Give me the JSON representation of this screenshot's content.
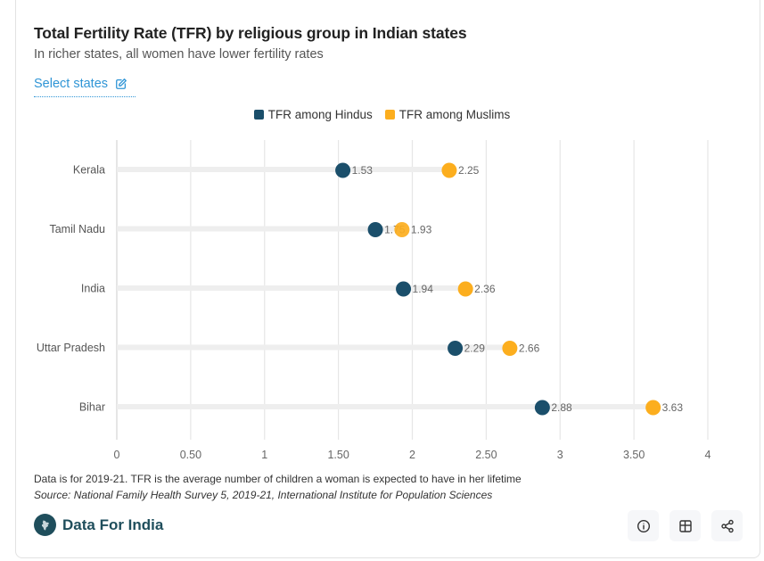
{
  "header": {
    "title": "Total Fertility Rate (TFR) by religious group in Indian states",
    "subtitle": "In richer states, all women have lower fertility rates",
    "select_states_label": "Select states",
    "select_states_icon": "edit-icon"
  },
  "colors": {
    "hindu": "#1b4f6b",
    "muslim": "#fcae1e",
    "track": "#eeeeee",
    "grid": "#e6e6e6",
    "link": "#2f95d6"
  },
  "chart_data": {
    "type": "dumbbell",
    "title": "Total Fertility Rate (TFR) by religious group in Indian states",
    "subtitle": "In richer states, all women have lower fertility rates",
    "categories": [
      "Kerala",
      "Tamil Nadu",
      "India",
      "Uttar Pradesh",
      "Bihar"
    ],
    "series": [
      {
        "name": "TFR among Hindus",
        "values": [
          1.53,
          1.75,
          1.94,
          2.29,
          2.88
        ]
      },
      {
        "name": "TFR among Muslims",
        "values": [
          2.25,
          1.93,
          2.36,
          2.66,
          3.63
        ]
      }
    ],
    "xlim": [
      0,
      4
    ],
    "xticks": [
      0,
      0.5,
      1,
      1.5,
      2,
      2.5,
      3,
      3.5,
      4
    ],
    "xtick_labels": [
      "0",
      "0.50",
      "1",
      "1.50",
      "2",
      "2.50",
      "3",
      "3.50",
      "4"
    ],
    "xlabel": "",
    "ylabel": "",
    "grid": "vertical",
    "legend_position": "top-center"
  },
  "footer": {
    "note": "Data is for 2019-21. TFR is the average number of children a woman is expected to have in her lifetime",
    "source": "Source: National Family Health Survey 5, 2019-21, International Institute for Population Sciences",
    "brand": "Data For India",
    "buttons": [
      {
        "name": "info",
        "icon": "info-icon"
      },
      {
        "name": "table",
        "icon": "table-icon"
      },
      {
        "name": "share",
        "icon": "share-icon"
      }
    ]
  }
}
